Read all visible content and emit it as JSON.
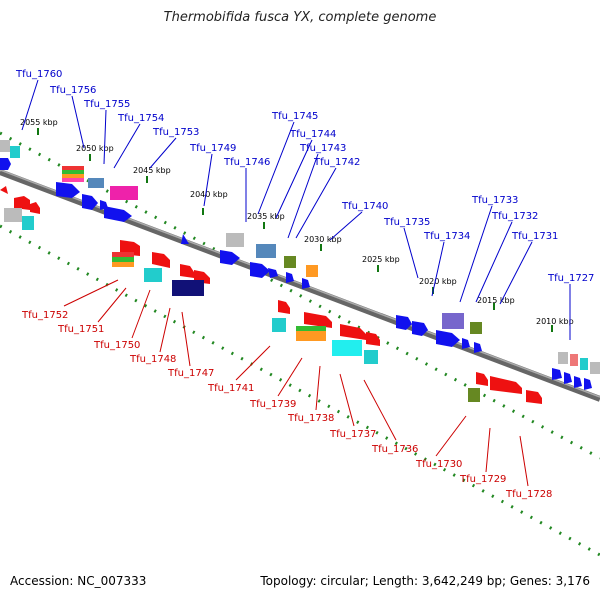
{
  "title": "Thermobifida fusca YX, complete genome",
  "accession": "Accession: NC_007333",
  "stats": "Topology: circular; Length: 3,642,249 bp; Genes: 3,176",
  "colors": {
    "top_label": "#0000cc",
    "bottom_label": "#cc0000",
    "backbone": "#777777",
    "tick": "#228822"
  },
  "kbp_labels": [
    "2055 kbp",
    "2050 kbp",
    "2045 kbp",
    "2040 kbp",
    "2035 kbp",
    "2030 kbp",
    "2025 kbp",
    "2020 kbp",
    "2015 kbp",
    "2010 kbp"
  ],
  "top_genes": [
    "Tfu_1760",
    "Tfu_1756",
    "Tfu_1755",
    "Tfu_1754",
    "Tfu_1753",
    "Tfu_1749",
    "Tfu_1746",
    "Tfu_1745",
    "Tfu_1744",
    "Tfu_1743",
    "Tfu_1742",
    "Tfu_1740",
    "Tfu_1735",
    "Tfu_1734",
    "Tfu_1733",
    "Tfu_1732",
    "Tfu_1731",
    "Tfu_1727"
  ],
  "bottom_genes": [
    "Tfu_1752",
    "Tfu_1751",
    "Tfu_1750",
    "Tfu_1748",
    "Tfu_1747",
    "Tfu_1741",
    "Tfu_1739",
    "Tfu_1738",
    "Tfu_1737",
    "Tfu_1736",
    "Tfu_1730",
    "Tfu_1729",
    "Tfu_1728"
  ]
}
